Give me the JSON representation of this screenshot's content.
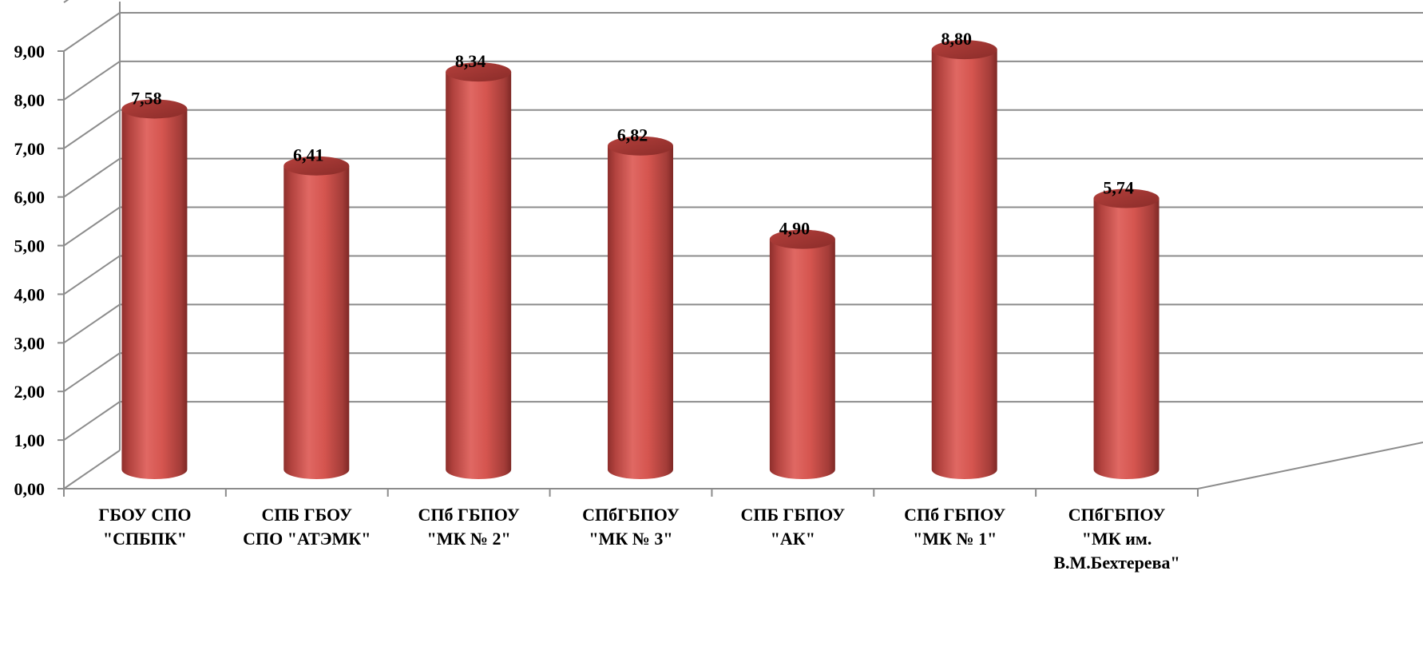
{
  "chart_data": {
    "type": "bar",
    "style": "3d-cylinder",
    "categories": [
      [
        "ГБОУ СПО",
        "\"СПБПК\""
      ],
      [
        "СПБ ГБОУ",
        "СПО \"АТЭМК\""
      ],
      [
        "СПб ГБПОУ",
        "\"МК № 2\""
      ],
      [
        "СПбГБПОУ",
        "\"МК № 3\""
      ],
      [
        "СПБ ГБПОУ",
        "\"АК\""
      ],
      [
        "СПб ГБПОУ",
        "\"МК № 1\""
      ],
      [
        "СПбГБПОУ",
        "\"МК им.",
        "В.М.Бехтерева\""
      ]
    ],
    "values": [
      7.58,
      6.41,
      8.34,
      6.82,
      4.9,
      8.8,
      5.74
    ],
    "value_labels": [
      "7,58",
      "6,41",
      "8,34",
      "6,82",
      "4,90",
      "8,80",
      "5,74"
    ],
    "y_ticks": [
      "0,00",
      "1,00",
      "2,00",
      "3,00",
      "4,00",
      "5,00",
      "6,00",
      "7,00",
      "8,00",
      "9,00"
    ],
    "ylim": [
      0,
      9
    ],
    "grid": true,
    "bar_color": "#C0504D",
    "bar_light": "#E06863",
    "bar_dark": "#8E2F2C",
    "grid_color": "#8C8C8C",
    "title": "",
    "xlabel": "",
    "ylabel": ""
  }
}
